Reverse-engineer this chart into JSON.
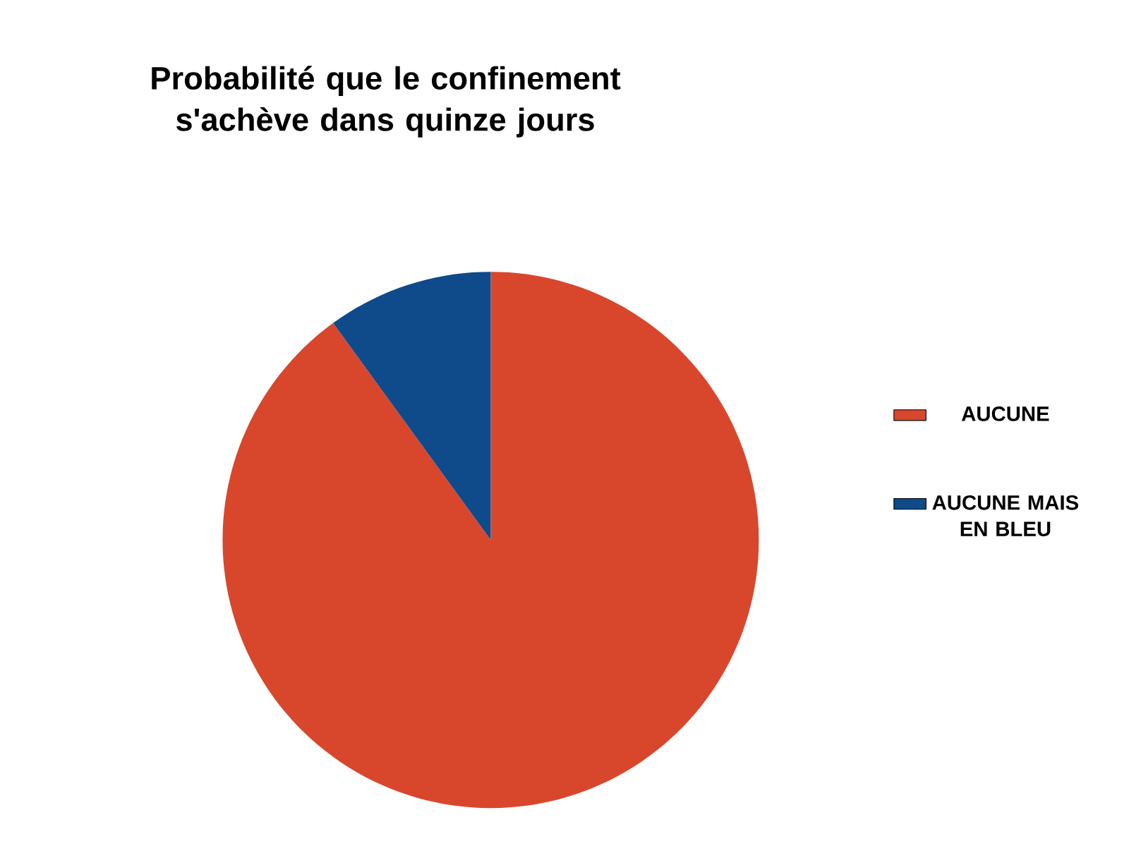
{
  "chart_data": {
    "type": "pie",
    "title": "Probabilité que le confinement s'achève dans quinze jours",
    "categories": [
      "AUCUNE",
      "AUCUNE MAIS EN BLEU"
    ],
    "values": [
      90,
      10
    ],
    "colors": [
      "#d8472c",
      "#0f4a8a"
    ],
    "legend": "right"
  }
}
